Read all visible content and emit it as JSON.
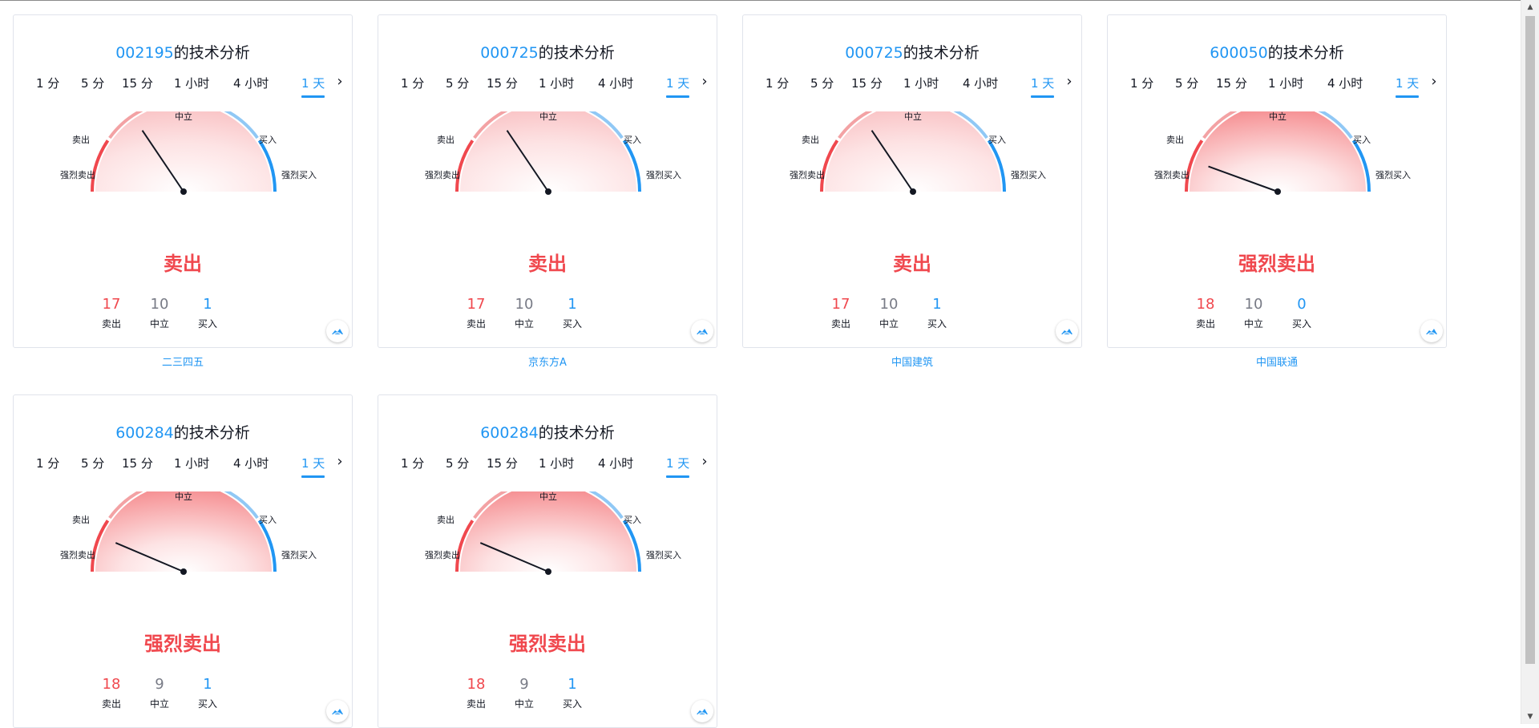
{
  "tab_labels": [
    "1 分",
    "5 分",
    "15 分",
    "1 小时",
    "4 小时",
    "1 天"
  ],
  "active_tab_index": 5,
  "title_suffix": "的技术分析",
  "gauge_labels": {
    "strong_sell": "强烈卖出",
    "sell": "卖出",
    "neutral": "中立",
    "buy": "买入",
    "strong_buy": "强烈买入"
  },
  "count_labels": {
    "sell": "卖出",
    "neutral": "中立",
    "buy": "买入"
  },
  "colors": {
    "sell": "#f0484e",
    "buy": "#2196f3",
    "neutral": "#787b86",
    "accent": "#2196f3"
  },
  "widgets": [
    {
      "code": "002195",
      "verdict": "卖出",
      "sell": 17,
      "neutral": 10,
      "buy": 1,
      "needle_angle_deg": 124,
      "caption": "二三四五"
    },
    {
      "code": "000725",
      "verdict": "卖出",
      "sell": 17,
      "neutral": 10,
      "buy": 1,
      "needle_angle_deg": 124,
      "caption": "京东方A"
    },
    {
      "code": "000725",
      "verdict": "卖出",
      "sell": 17,
      "neutral": 10,
      "buy": 1,
      "needle_angle_deg": 124,
      "caption": "中国建筑"
    },
    {
      "code": "600050",
      "verdict": "强烈卖出",
      "sell": 18,
      "neutral": 10,
      "buy": 0,
      "needle_angle_deg": 160,
      "caption": "中国联通"
    },
    {
      "code": "600284",
      "verdict": "强烈卖出",
      "sell": 18,
      "neutral": 9,
      "buy": 1,
      "needle_angle_deg": 157,
      "caption": ""
    },
    {
      "code": "600284",
      "verdict": "强烈卖出",
      "sell": 18,
      "neutral": 9,
      "buy": 1,
      "needle_angle_deg": 157,
      "caption": ""
    }
  ]
}
